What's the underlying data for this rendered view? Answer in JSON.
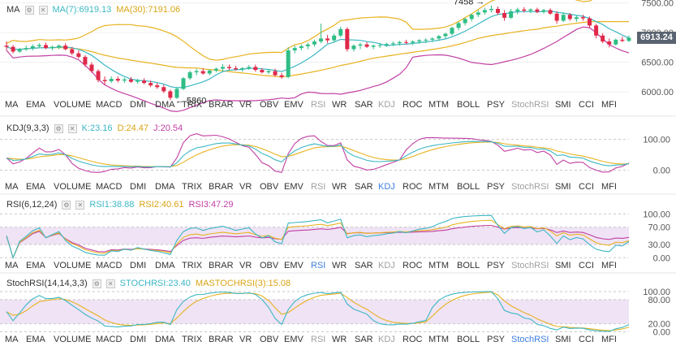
{
  "colors": {
    "up": "#2ebd85",
    "down": "#e0294a",
    "ma7": "#3cb7c4",
    "ma30": "#e8b21f",
    "boll_upper": "#e8b21f",
    "boll_lower": "#c23fa3",
    "k": "#3cb7c4",
    "d": "#e8b21f",
    "j": "#c23fa3",
    "band": "#efe3f5"
  },
  "main": {
    "indicator": "MA",
    "ma7_label": "MA(7):6919.13",
    "ma30_label": "MA(30):7191.06",
    "last_price": "6913.24",
    "annotation_high": "7458",
    "annotation_low": "5860"
  },
  "tabs": [
    "MA",
    "EMA",
    "VOLUME",
    "MACD",
    "DMI",
    "DMA",
    "TRIX",
    "BRAR",
    "VR",
    "OBV",
    "EMV",
    "RSI",
    "WR",
    "SAR",
    "KDJ",
    "ROC",
    "MTM",
    "BOLL",
    "PSY",
    "StochRSI",
    "SMI",
    "CCI",
    "MFI"
  ],
  "panels": {
    "kdj": {
      "name": "KDJ(9,3,3)",
      "k_label": "K:23.16",
      "d_label": "D:24.47",
      "j_label": "J:20.54"
    },
    "rsi": {
      "name": "RSI(6,12,24)",
      "rsi1_label": "RSI1:38.88",
      "rsi2_label": "RSI2:40.61",
      "rsi3_label": "RSI3:47.29"
    },
    "stochrsi": {
      "name": "StochRSI(14,14,3,3)",
      "stoch_label": "STOCHRSI:23.40",
      "ma_label": "MASTOCHRSI(3):15.08"
    }
  },
  "chart_data": [
    {
      "type": "candlestick",
      "y_axis_ticks": [
        "7500.00",
        "7000.00",
        "6500.00",
        "6000.00"
      ],
      "ylim": [
        5700,
        7550
      ],
      "candles": [
        [
          6780,
          6850,
          6700,
          6760
        ],
        [
          6760,
          6790,
          6650,
          6680
        ],
        [
          6680,
          6740,
          6660,
          6720
        ],
        [
          6720,
          6780,
          6690,
          6740
        ],
        [
          6740,
          6800,
          6700,
          6770
        ],
        [
          6770,
          6820,
          6740,
          6790
        ],
        [
          6790,
          6830,
          6720,
          6740
        ],
        [
          6740,
          6780,
          6700,
          6760
        ],
        [
          6760,
          6800,
          6720,
          6780
        ],
        [
          6780,
          6820,
          6700,
          6720
        ],
        [
          6720,
          6760,
          6620,
          6650
        ],
        [
          6650,
          6700,
          6560,
          6590
        ],
        [
          6590,
          6620,
          6420,
          6460
        ],
        [
          6460,
          6500,
          6320,
          6350
        ],
        [
          6350,
          6380,
          6160,
          6200
        ],
        [
          6200,
          6260,
          6120,
          6180
        ],
        [
          6180,
          6260,
          6150,
          6220
        ],
        [
          6220,
          6260,
          6160,
          6190
        ],
        [
          6190,
          6240,
          6150,
          6210
        ],
        [
          6210,
          6250,
          6150,
          6170
        ],
        [
          6170,
          6220,
          6140,
          6190
        ],
        [
          6190,
          6230,
          6130,
          6150
        ],
        [
          6150,
          6190,
          6080,
          6110
        ],
        [
          6110,
          6150,
          6050,
          6080
        ],
        [
          6080,
          6120,
          5980,
          6010
        ],
        [
          6010,
          6040,
          5860,
          5900
        ],
        [
          5900,
          6080,
          5880,
          6050
        ],
        [
          6050,
          6250,
          6030,
          6230
        ],
        [
          6230,
          6360,
          6200,
          6330
        ],
        [
          6330,
          6390,
          6280,
          6350
        ],
        [
          6350,
          6400,
          6290,
          6310
        ],
        [
          6310,
          6380,
          6280,
          6360
        ],
        [
          6360,
          6410,
          6330,
          6390
        ],
        [
          6390,
          6470,
          6350,
          6420
        ],
        [
          6420,
          6460,
          6370,
          6400
        ],
        [
          6400,
          6440,
          6360,
          6380
        ],
        [
          6380,
          6420,
          6340,
          6400
        ],
        [
          6400,
          6450,
          6370,
          6420
        ],
        [
          6420,
          6460,
          6340,
          6370
        ],
        [
          6370,
          6400,
          6310,
          6330
        ],
        [
          6330,
          6380,
          6300,
          6350
        ],
        [
          6350,
          6390,
          6260,
          6280
        ],
        [
          6280,
          6320,
          6220,
          6250
        ],
        [
          6250,
          6750,
          6230,
          6700
        ],
        [
          6700,
          6780,
          6650,
          6740
        ],
        [
          6740,
          6800,
          6700,
          6770
        ],
        [
          6770,
          6830,
          6720,
          6800
        ],
        [
          6800,
          6880,
          6760,
          6850
        ],
        [
          6850,
          7150,
          6820,
          6900
        ],
        [
          6900,
          6960,
          6820,
          6870
        ],
        [
          6870,
          6980,
          6830,
          6950
        ],
        [
          6950,
          7100,
          6920,
          7060
        ],
        [
          7060,
          7090,
          6680,
          6720
        ],
        [
          6720,
          6800,
          6680,
          6780
        ],
        [
          6780,
          6830,
          6720,
          6800
        ],
        [
          6800,
          6840,
          6740,
          6760
        ],
        [
          6760,
          6800,
          6720,
          6780
        ],
        [
          6780,
          6820,
          6740,
          6790
        ],
        [
          6790,
          6830,
          6760,
          6810
        ],
        [
          6810,
          6850,
          6770,
          6820
        ],
        [
          6820,
          6860,
          6780,
          6840
        ],
        [
          6840,
          6880,
          6800,
          6830
        ],
        [
          6830,
          6870,
          6790,
          6850
        ],
        [
          6850,
          6890,
          6810,
          6870
        ],
        [
          6870,
          6900,
          6820,
          6880
        ],
        [
          6880,
          6920,
          6840,
          6900
        ],
        [
          6900,
          6960,
          6860,
          6940
        ],
        [
          6940,
          7000,
          6900,
          6980
        ],
        [
          6980,
          7100,
          6950,
          7080
        ],
        [
          7080,
          7180,
          7040,
          7160
        ],
        [
          7160,
          7250,
          7120,
          7230
        ],
        [
          7230,
          7320,
          7190,
          7300
        ],
        [
          7300,
          7380,
          7260,
          7340
        ],
        [
          7340,
          7420,
          7300,
          7380
        ],
        [
          7380,
          7458,
          7340,
          7400
        ],
        [
          7400,
          7440,
          7300,
          7330
        ],
        [
          7330,
          7380,
          7200,
          7250
        ],
        [
          7250,
          7400,
          7230,
          7360
        ],
        [
          7360,
          7420,
          7310,
          7390
        ],
        [
          7390,
          7430,
          7340,
          7370
        ],
        [
          7370,
          7410,
          7330,
          7390
        ],
        [
          7390,
          7420,
          7330,
          7350
        ],
        [
          7350,
          7400,
          7320,
          7380
        ],
        [
          7380,
          7410,
          7300,
          7320
        ],
        [
          7320,
          7360,
          7150,
          7200
        ],
        [
          7200,
          7340,
          7180,
          7300
        ],
        [
          7300,
          7330,
          7200,
          7230
        ],
        [
          7230,
          7290,
          7180,
          7260
        ],
        [
          7260,
          7300,
          7200,
          7240
        ],
        [
          7240,
          7270,
          7080,
          7120
        ],
        [
          7120,
          7150,
          6900,
          6950
        ],
        [
          6950,
          6990,
          6820,
          6850
        ],
        [
          6850,
          6900,
          6750,
          6800
        ],
        [
          6800,
          6900,
          6780,
          6880
        ],
        [
          6880,
          6930,
          6840,
          6860
        ],
        [
          6860,
          6950,
          6840,
          6913
        ]
      ]
    },
    {
      "type": "line",
      "name": "KDJ(9,3,3)",
      "y_axis_ticks": [
        "100.00",
        "0.00"
      ],
      "ylim": [
        -25,
        115
      ]
    },
    {
      "type": "line",
      "name": "RSI(6,12,24)",
      "y_axis_ticks": [
        "100.00",
        "70.00",
        "30.00",
        "0.00"
      ],
      "ylim": [
        -5,
        110
      ]
    },
    {
      "type": "line",
      "name": "StochRSI(14,14,3,3)",
      "y_axis_ticks": [
        "100.00",
        "80.00",
        "20.00",
        "0.00"
      ],
      "ylim": [
        -5,
        110
      ]
    }
  ]
}
